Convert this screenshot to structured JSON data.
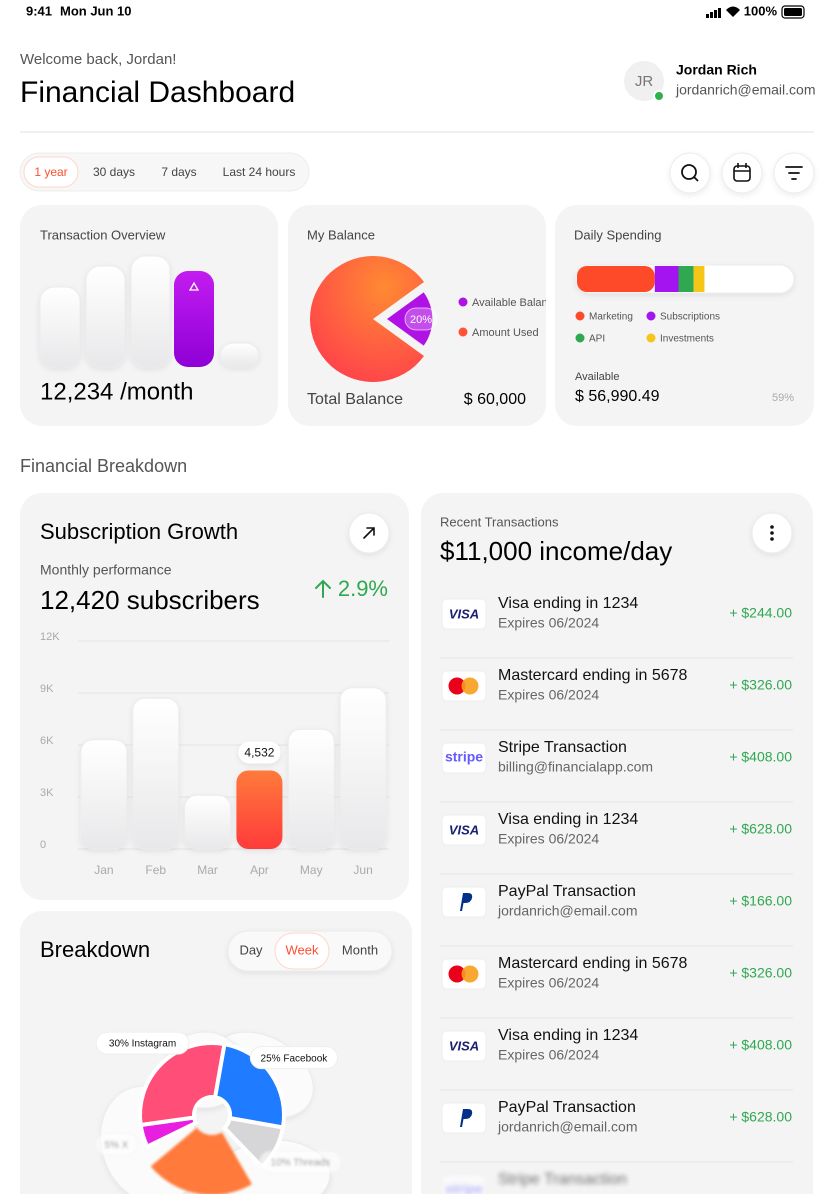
{
  "status_bar": {
    "time": "9:41",
    "date": "Mon Jun 10",
    "battery": "100%"
  },
  "header": {
    "greeting": "Welcome back, Jordan!",
    "title": "Financial Dashboard",
    "user": {
      "initials": "JR",
      "name": "Jordan Rich",
      "email": "jordanrich@email.com"
    }
  },
  "filters": {
    "options": [
      "1 year",
      "30 days",
      "7 days",
      "Last 24 hours"
    ],
    "active": 0
  },
  "transaction_overview": {
    "title": "Transaction Overview",
    "value": "12,234 /month"
  },
  "my_balance": {
    "title": "My Balance",
    "chart": {
      "type": "pie",
      "slices": [
        {
          "name": "Available Balance",
          "value": 20,
          "label": "20%",
          "color": "#b012e6"
        },
        {
          "name": "Amount Used",
          "value": 80,
          "color": "#ff5236"
        }
      ]
    },
    "total_label": "Total Balance",
    "total": "$ 60,000"
  },
  "daily_spending": {
    "title": "Daily Spending",
    "chart": {
      "type": "stacked_bar",
      "xlim": [
        0,
        100
      ],
      "series": [
        {
          "name": "Marketing",
          "color": "#ff4a2a",
          "values": [
            36
          ]
        },
        {
          "name": "Subscriptions",
          "color": "#a414f0",
          "values": [
            11
          ]
        },
        {
          "name": "API",
          "color": "#2fa84f",
          "values": [
            7
          ]
        },
        {
          "name": "Investments",
          "color": "#f5c518",
          "values": [
            5
          ]
        }
      ]
    },
    "available_label": "Available",
    "available": "$ 56,990.49",
    "percent": "59%"
  },
  "section_title": "Financial Breakdown",
  "subscription_growth": {
    "title": "Subscription Growth",
    "subtitle": "Monthly performance",
    "value": "12,420 subscribers",
    "change": "2.9%",
    "chart": {
      "type": "bar",
      "categories": [
        "Jan",
        "Feb",
        "Mar",
        "Apr",
        "May",
        "Jun"
      ],
      "values": [
        6300,
        8700,
        3100,
        4532,
        6900,
        9300
      ],
      "value_labels": [
        null,
        null,
        null,
        "4,532",
        null,
        null
      ],
      "highlight": 3,
      "ylim": [
        0,
        12000
      ],
      "yticks": [
        0,
        {
          "value": 3000,
          "label": "3K"
        },
        {
          "value": 6000,
          "label": "6K"
        },
        {
          "value": 9000,
          "label": "9K"
        },
        {
          "value": 12000,
          "label": "12K"
        }
      ],
      "grid": true
    }
  },
  "breakdown": {
    "title": "Breakdown",
    "tabs": [
      "Day",
      "Week",
      "Month"
    ],
    "active": 1,
    "chart": {
      "type": "pie",
      "slices": [
        {
          "name": "X",
          "value": 5,
          "label": "5% X",
          "color": "#e81ee0"
        },
        {
          "name": "Instagram",
          "value": 30,
          "label": "30% Instagram",
          "color": "#ff4f78"
        },
        {
          "name": "Facebook",
          "value": 25,
          "label": "25% Facebook",
          "color": "#1f7bff"
        },
        {
          "name": "Threads",
          "value": 10,
          "label": "10% Threads",
          "color": "#d6d6d8"
        }
      ]
    }
  },
  "recent_transactions": {
    "label": "Recent Transactions",
    "title": "$11,000 income/day",
    "items": [
      {
        "logo": "VISA",
        "name": "Visa ending in 1234",
        "detail": "Expires 06/2024",
        "amount": "+ $244.00"
      },
      {
        "logo": "mastercard",
        "name": "Mastercard ending in 5678",
        "detail": "Expires 06/2024",
        "amount": "+ $326.00"
      },
      {
        "logo": "stripe",
        "name": "Stripe Transaction",
        "detail": "billing@financialapp.com",
        "amount": "+ $408.00"
      },
      {
        "logo": "VISA",
        "name": "Visa ending in 1234",
        "detail": "Expires 06/2024",
        "amount": "+ $628.00"
      },
      {
        "logo": "paypal",
        "name": "PayPal Transaction",
        "detail": "jordanrich@email.com",
        "amount": "+ $166.00"
      },
      {
        "logo": "mastercard",
        "name": "Mastercard ending in 5678",
        "detail": "Expires 06/2024",
        "amount": "+ $326.00"
      },
      {
        "logo": "VISA",
        "name": "Visa ending in 1234",
        "detail": "Expires 06/2024",
        "amount": "+ $408.00"
      },
      {
        "logo": "paypal",
        "name": "PayPal Transaction",
        "detail": "jordanrich@email.com",
        "amount": "+ $628.00"
      },
      {
        "logo": "stripe",
        "name": "Stripe Transaction"
      }
    ]
  }
}
